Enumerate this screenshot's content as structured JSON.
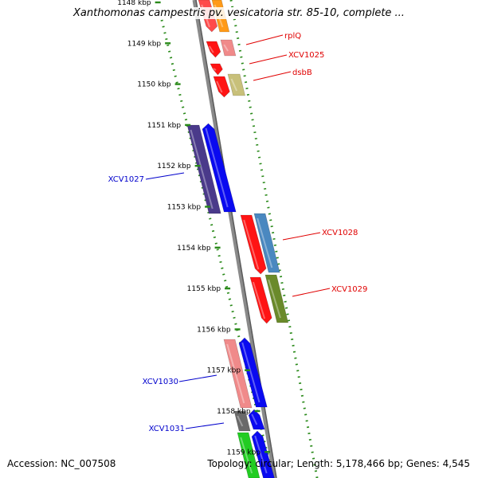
{
  "title": "Xanthomonas campestris pv. vesicatoria str. 85-10, complete ...",
  "footer": {
    "accession": "Accession: NC_007508",
    "summary": "Topology: circular; Length: 5,178,466 bp; Genes: 4,545"
  },
  "colors": {
    "backbone": "#8a8a8a",
    "tick_dots": "#2a8a1a",
    "label_right": "#e00000",
    "label_left": "#0000cc"
  },
  "scale": {
    "unit": "kbp",
    "ticks": [
      {
        "kbp": 1148,
        "label": "1148 kbp"
      },
      {
        "kbp": 1149,
        "label": "1149 kbp"
      },
      {
        "kbp": 1150,
        "label": "1150 kbp"
      },
      {
        "kbp": 1151,
        "label": "1151 kbp"
      },
      {
        "kbp": 1152,
        "label": "1152 kbp"
      },
      {
        "kbp": 1153,
        "label": "1153 kbp"
      },
      {
        "kbp": 1154,
        "label": "1154 kbp"
      },
      {
        "kbp": 1155,
        "label": "1155 kbp"
      },
      {
        "kbp": 1156,
        "label": "1156 kbp"
      },
      {
        "kbp": 1157,
        "label": "1157 kbp"
      },
      {
        "kbp": 1158,
        "label": "1158 kbp"
      },
      {
        "kbp": 1159,
        "label": "1159 kbp"
      }
    ]
  },
  "genes": [
    {
      "name": "rplQ",
      "labeled": true
    },
    {
      "name": "XCV1025",
      "labeled": true
    },
    {
      "name": "dsbB",
      "labeled": true
    },
    {
      "name": "XCV1027",
      "labeled": true
    },
    {
      "name": "XCV1028",
      "labeled": true
    },
    {
      "name": "XCV1029",
      "labeled": true
    },
    {
      "name": "XCV1030",
      "labeled": true
    },
    {
      "name": "XCV1031",
      "labeled": true
    }
  ]
}
